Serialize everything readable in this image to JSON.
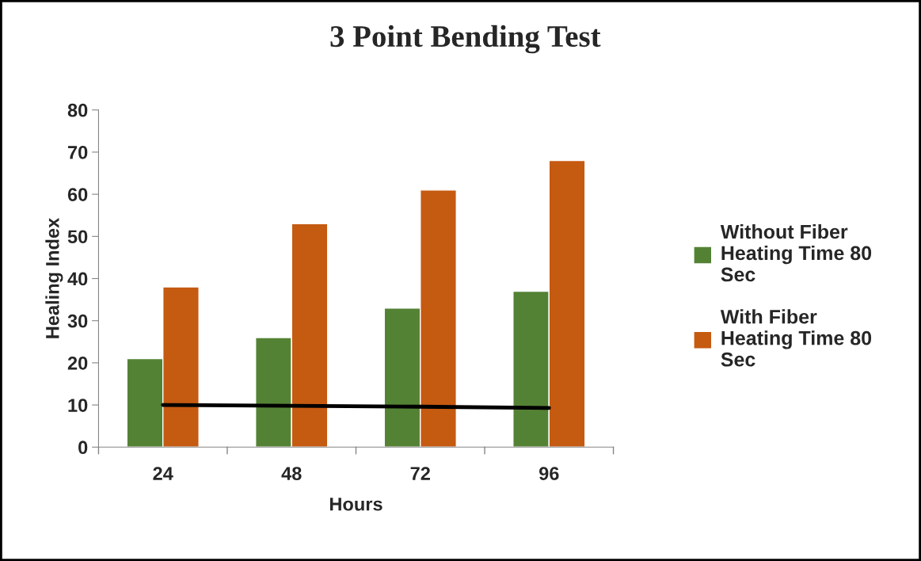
{
  "chart_data": {
    "type": "bar",
    "title": "3 Point Bending Test",
    "xlabel": "Hours",
    "ylabel": "Healing Index",
    "categories": [
      "24",
      "48",
      "72",
      "96"
    ],
    "series": [
      {
        "name": "Without Fiber Heating Time 80 Sec",
        "color": "#548235",
        "values": [
          21,
          26,
          33,
          37
        ]
      },
      {
        "name": "With Fiber Heating Time 80 Sec",
        "color": "#c55a11",
        "values": [
          38,
          53,
          61,
          68
        ]
      },
      {
        "type": "line",
        "color": "#000000",
        "values": [
          10.0,
          9.8,
          9.6,
          9.3
        ]
      }
    ],
    "ylim": [
      0,
      80
    ],
    "yticks": [
      0,
      10,
      20,
      30,
      40,
      50,
      60,
      70,
      80
    ],
    "grid": false,
    "legend": "right"
  }
}
